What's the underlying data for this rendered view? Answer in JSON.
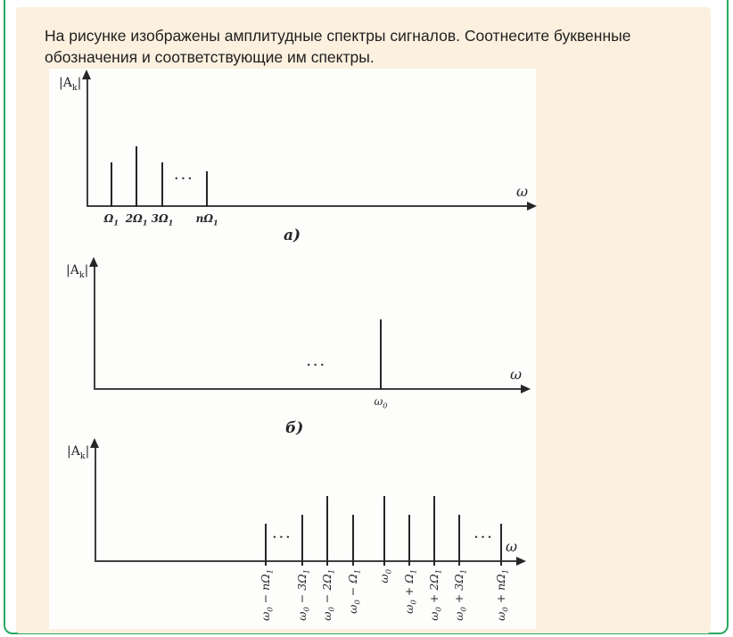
{
  "colors": {
    "accent_green": "#2aa864",
    "panel_peach": "#fcf0df",
    "figure_bg": "#fdfdfc",
    "page_bg": "#ffffff",
    "text": "#1f1f1f",
    "ink": "#262626",
    "axis": "#3f3f3f"
  },
  "question": {
    "lines": [
      "На рисунке изображены амплитудные спектры сигналов. Соотнесите буквенные",
      "обозначения и соответствующие им спектры."
    ]
  },
  "chart_data": [
    {
      "type": "stem",
      "caption": "а)",
      "ylabel": "|A_{k}|",
      "xlabel": "ω",
      "tick_orientation": "horizontal",
      "tick_weight": "bold",
      "ellipsis_char": "···",
      "stems": [
        {
          "tick": "Ω_{1}",
          "rel_x": 0.054,
          "rel_amp": 0.345
        },
        {
          "tick": "2Ω_{1}",
          "rel_x": 0.111,
          "rel_amp": 0.469
        },
        {
          "tick": "3Ω_{1}",
          "rel_x": 0.169,
          "rel_amp": 0.345
        },
        {
          "tick": "nΩ_{1}",
          "rel_x": 0.27,
          "rel_amp": 0.276
        }
      ],
      "ellipses": [
        {
          "rel_x": 0.219,
          "rel_y": 0.214
        }
      ]
    },
    {
      "type": "stem",
      "caption": "б)",
      "ylabel": "|A_{k}|",
      "xlabel": "ω",
      "tick_orientation": "horizontal",
      "tick_weight": "normal",
      "ellipsis_char": "···",
      "stems": [
        {
          "tick": "ω_{0}",
          "rel_x": 0.666,
          "rel_amp": 0.564
        }
      ],
      "ellipses": [
        {
          "rel_x": 0.517,
          "rel_y": 0.193
        }
      ]
    },
    {
      "type": "stem",
      "caption": "",
      "ylabel": "|A_{k}|",
      "xlabel": "ω",
      "tick_orientation": "rotated",
      "tick_below": true,
      "ellipsis_char": "···",
      "stems": [
        {
          "tick": "ω_{0} − nΩ_{1}",
          "rel_x": 0.401,
          "rel_amp": 0.331
        },
        {
          "tick": "ω_{0} − 3Ω_{1}",
          "rel_x": 0.487,
          "rel_amp": 0.408
        },
        {
          "tick": "ω_{0} − 2Ω_{1}",
          "rel_x": 0.546,
          "rel_amp": 0.569
        },
        {
          "tick": "ω_{0} − Ω_{1}",
          "rel_x": 0.607,
          "rel_amp": 0.408
        },
        {
          "tick": "ω_{0}",
          "rel_x": 0.681,
          "rel_amp": 0.569
        },
        {
          "tick": "ω_{0} + Ω_{1}",
          "rel_x": 0.739,
          "rel_amp": 0.408
        },
        {
          "tick": "ω_{0} + 2Ω_{1}",
          "rel_x": 0.798,
          "rel_amp": 0.569
        },
        {
          "tick": "ω_{0} + 3Ω_{1}",
          "rel_x": 0.857,
          "rel_amp": 0.408
        },
        {
          "tick": "ω_{0} + nΩ_{1}",
          "rel_x": 0.956,
          "rel_amp": 0.331
        }
      ],
      "ellipses": [
        {
          "rel_x": 0.441,
          "rel_y": 0.208
        },
        {
          "rel_x": 0.916,
          "rel_y": 0.208
        }
      ]
    }
  ]
}
